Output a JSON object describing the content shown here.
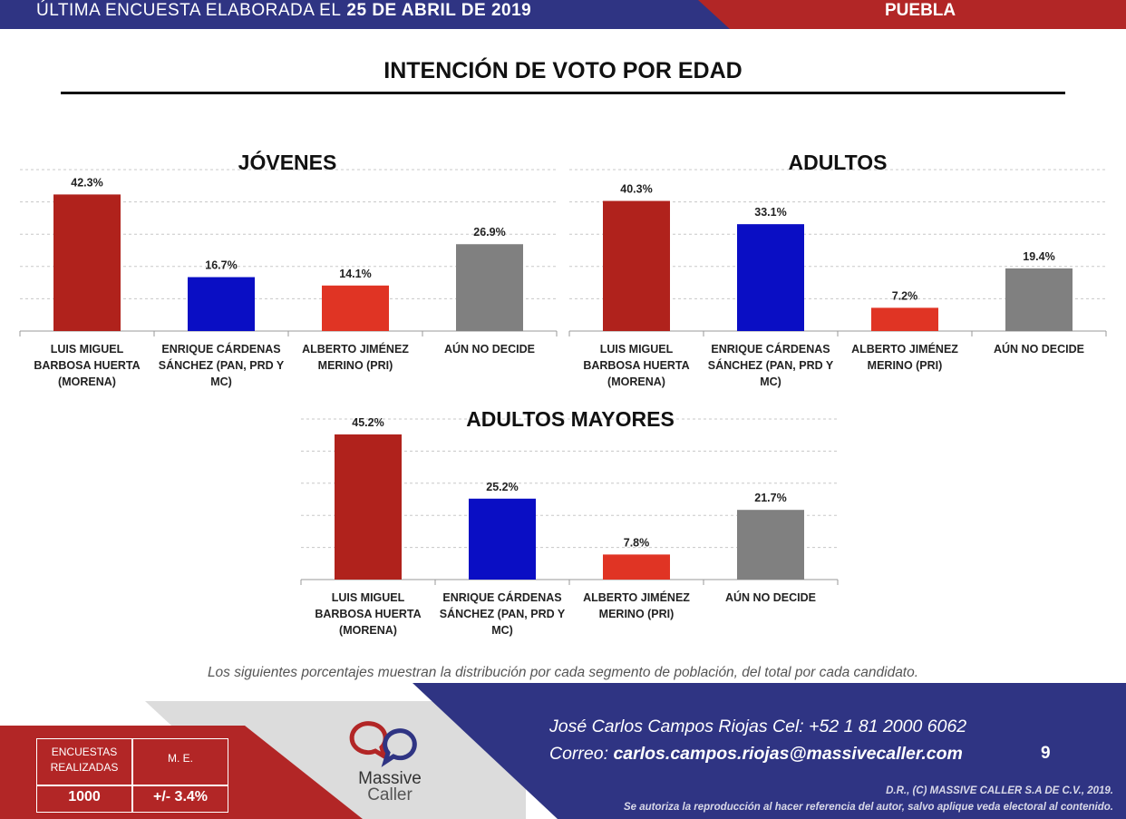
{
  "header": {
    "survey_label": "ÚLTIMA ENCUESTA ELABORADA EL",
    "survey_date": "25 DE ABRIL DE 2019",
    "region": "PUEBLA"
  },
  "page_title": "INTENCIÓN DE VOTO POR EDAD",
  "chart_data": [
    {
      "type": "bar",
      "title": "JÓVENES",
      "categories": [
        "LUIS MIGUEL BARBOSA HUERTA (MORENA)",
        "ENRIQUE CÁRDENAS SÁNCHEZ (PAN, PRD Y MC)",
        "ALBERTO JIMÉNEZ MERINO (PRI)",
        "AÚN NO DECIDE"
      ],
      "category_lines": [
        [
          "LUIS MIGUEL",
          "BARBOSA HUERTA",
          "(MORENA)"
        ],
        [
          "ENRIQUE CÁRDENAS",
          "SÁNCHEZ (PAN, PRD Y",
          "MC)"
        ],
        [
          "ALBERTO JIMÉNEZ",
          "MERINO (PRI)"
        ],
        [
          "AÚN NO DECIDE"
        ]
      ],
      "values": [
        42.3,
        16.7,
        14.1,
        26.9
      ],
      "value_labels": [
        "42.3%",
        "16.7%",
        "14.1%",
        "26.9%"
      ],
      "colors": [
        "#b0221c",
        "#0a0ec4",
        "#e03424",
        "#808080"
      ],
      "ylim": [
        0,
        50
      ],
      "grid": true
    },
    {
      "type": "bar",
      "title": "ADULTOS",
      "categories": [
        "LUIS MIGUEL BARBOSA HUERTA (MORENA)",
        "ENRIQUE CÁRDENAS SÁNCHEZ (PAN, PRD Y MC)",
        "ALBERTO JIMÉNEZ MERINO (PRI)",
        "AÚN NO DECIDE"
      ],
      "category_lines": [
        [
          "LUIS MIGUEL",
          "BARBOSA HUERTA",
          "(MORENA)"
        ],
        [
          "ENRIQUE CÁRDENAS",
          "SÁNCHEZ (PAN, PRD Y",
          "MC)"
        ],
        [
          "ALBERTO JIMÉNEZ",
          "MERINO (PRI)"
        ],
        [
          "AÚN NO DECIDE"
        ]
      ],
      "values": [
        40.3,
        33.1,
        7.2,
        19.4
      ],
      "value_labels": [
        "40.3%",
        "33.1%",
        "7.2%",
        "19.4%"
      ],
      "colors": [
        "#b0221c",
        "#0a0ec4",
        "#e03424",
        "#808080"
      ],
      "ylim": [
        0,
        50
      ],
      "grid": true
    },
    {
      "type": "bar",
      "title": "ADULTOS MAYORES",
      "categories": [
        "LUIS MIGUEL BARBOSA HUERTA (MORENA)",
        "ENRIQUE CÁRDENAS SÁNCHEZ (PAN, PRD Y MC)",
        "ALBERTO JIMÉNEZ MERINO (PRI)",
        "AÚN NO DECIDE"
      ],
      "category_lines": [
        [
          "LUIS MIGUEL",
          "BARBOSA HUERTA",
          "(MORENA)"
        ],
        [
          "ENRIQUE CÁRDENAS",
          "SÁNCHEZ (PAN, PRD Y",
          "MC)"
        ],
        [
          "ALBERTO JIMÉNEZ",
          "MERINO (PRI)"
        ],
        [
          "AÚN NO DECIDE"
        ]
      ],
      "values": [
        45.2,
        25.2,
        7.8,
        21.7
      ],
      "value_labels": [
        "45.2%",
        "25.2%",
        "7.8%",
        "21.7%"
      ],
      "colors": [
        "#b0221c",
        "#0a0ec4",
        "#e03424",
        "#808080"
      ],
      "ylim": [
        0,
        50
      ],
      "grid": true
    }
  ],
  "note": "Los siguientes porcentajes muestran la distribución por cada segmento de población, del total por cada candidato.",
  "stats": {
    "surveys_label_line1": "ENCUESTAS",
    "surveys_label_line2": "REALIZADAS",
    "margin_label": "M. E.",
    "surveys_value": "1000",
    "margin_value": "+/- 3.4%"
  },
  "logo": {
    "line1": "Massive",
    "line2": "Caller",
    "icon": "chat-bubbles-logo-icon",
    "colors": [
      "#b22626",
      "#2f3483"
    ]
  },
  "contact": {
    "line1": "José Carlos Campos Riojas Cel: +52 1 81 2000 6062",
    "email_label": "Correo:",
    "email": "carlos.campos.riojas@massivecaller.com",
    "page_number": "9"
  },
  "copyright": {
    "line1": "D.R., (C) MASSIVE CALLER S.A DE C.V., 2019.",
    "line2": "Se autoriza la reproducción al hacer referencia del autor, salvo aplique veda electoral al contenido."
  }
}
